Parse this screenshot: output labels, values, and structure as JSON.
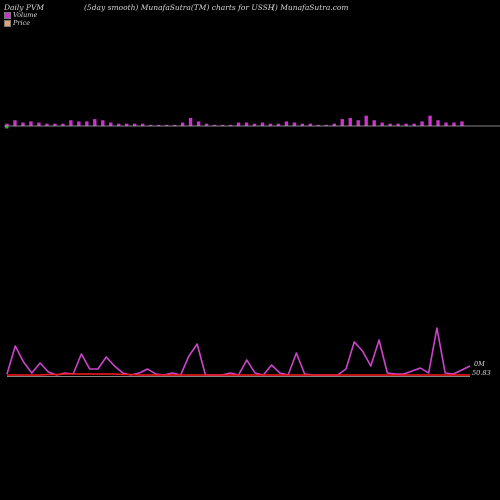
{
  "header": {
    "left": "Daily PVM",
    "middle": "(5day smooth) MunafaSutra(TM) charts for USSH",
    "right": "() MunafaSutra.com"
  },
  "legend": {
    "volume_label": "Volume",
    "price_label": "Price"
  },
  "labels": {
    "volume_value": "0M",
    "price_value": "50.83"
  },
  "colors": {
    "background": "#000000",
    "volume_bar": "#cc33cc",
    "volume_bar_down": "#22aa22",
    "volume_line": "#cc44cc",
    "price_line": "#ff1a1a",
    "baseline": "#b0b0b0",
    "text": "#d8d8d8"
  },
  "chart_data": [
    {
      "type": "bar",
      "series": [
        {
          "values": [
            2,
            5,
            3,
            4,
            3,
            2,
            2,
            2,
            5,
            4,
            4,
            6,
            5,
            3,
            2,
            2,
            2,
            2,
            1,
            1,
            1,
            1,
            3,
            7,
            4,
            2,
            1,
            1,
            1,
            3,
            3,
            2,
            3,
            2,
            2,
            4,
            3,
            2,
            2,
            1,
            1,
            2,
            6,
            7,
            5,
            9,
            5,
            3,
            2,
            2,
            2,
            2,
            4,
            9,
            5,
            3,
            3,
            4
          ]
        }
      ]
    },
    {
      "type": "line",
      "series": [
        {
          "key": "volume",
          "values": [
            2,
            30,
            14,
            3,
            13,
            4,
            1,
            3,
            2,
            22,
            7,
            7,
            19,
            10,
            3,
            1,
            3,
            7,
            2,
            1,
            3,
            1,
            20,
            32,
            1,
            1,
            1,
            3,
            1,
            16,
            3,
            1,
            11,
            3,
            1,
            23,
            2,
            1,
            1,
            1,
            1,
            7,
            34,
            25,
            10,
            36,
            3,
            2,
            2,
            5,
            8,
            3,
            48,
            3,
            2,
            6,
            10
          ]
        },
        {
          "key": "price",
          "values": [
            1,
            1,
            1,
            1,
            1,
            1.5,
            1.5,
            2,
            2,
            2,
            2,
            2,
            2,
            2,
            1.5,
            1.5,
            1,
            1,
            1,
            1,
            1,
            1,
            1,
            1,
            1,
            1,
            1,
            1,
            1,
            1,
            1,
            1,
            1,
            1,
            1,
            1,
            1,
            1,
            1,
            1,
            1,
            1,
            1,
            1,
            1,
            1,
            1,
            1,
            1,
            1,
            1,
            1,
            1,
            1,
            1,
            1,
            1
          ]
        }
      ]
    }
  ]
}
